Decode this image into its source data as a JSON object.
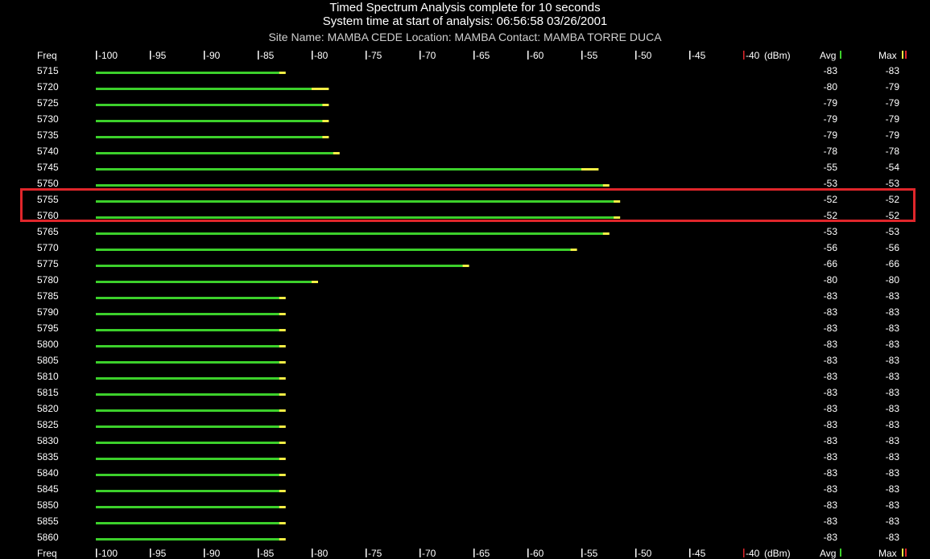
{
  "header": {
    "title": "Timed Spectrum Analysis complete for 10 seconds",
    "subtitle": "System time at start of analysis: 06:56:58 03/26/2001",
    "site_line": "Site Name: MAMBA CEDE Location: MAMBA Contact: MAMBA TORRE DUCA"
  },
  "columns": {
    "freq": "Freq",
    "avg": "Avg",
    "max": "Max",
    "unit": "(dBm)"
  },
  "colors": {
    "avg_bar": "#3cd02b",
    "max_bar": "#f2ee45",
    "max_marker": "#e0262b",
    "highlight": "#e0262b"
  },
  "chart_data": {
    "type": "bar",
    "orientation": "horizontal",
    "xlim": [
      -100,
      -40
    ],
    "x_ticks": [
      -100,
      -95,
      -90,
      -85,
      -80,
      -75,
      -70,
      -65,
      -60,
      -55,
      -50,
      -45,
      -40
    ],
    "categories": [
      "5715",
      "5720",
      "5725",
      "5730",
      "5735",
      "5740",
      "5745",
      "5750",
      "5755",
      "5760",
      "5765",
      "5770",
      "5775",
      "5780",
      "5785",
      "5790",
      "5795",
      "5800",
      "5805",
      "5810",
      "5815",
      "5820",
      "5825",
      "5830",
      "5835",
      "5840",
      "5845",
      "5850",
      "5855",
      "5860"
    ],
    "series": [
      {
        "name": "Avg",
        "values": [
          -83,
          -80,
          -79,
          -79,
          -79,
          -78,
          -55,
          -53,
          -52,
          -52,
          -53,
          -56,
          -66,
          -80,
          -83,
          -83,
          -83,
          -83,
          -83,
          -83,
          -83,
          -83,
          -83,
          -83,
          -83,
          -83,
          -83,
          -83,
          -83,
          -83
        ]
      },
      {
        "name": "Max",
        "values": [
          -83,
          -79,
          -79,
          -79,
          -79,
          -78,
          -54,
          -53,
          -52,
          -52,
          -53,
          -56,
          -66,
          -80,
          -83,
          -83,
          -83,
          -83,
          -83,
          -83,
          -83,
          -83,
          -83,
          -83,
          -83,
          -83,
          -83,
          -83,
          -83,
          -83
        ]
      }
    ],
    "highlighted_categories": [
      "5755",
      "5760"
    ]
  }
}
